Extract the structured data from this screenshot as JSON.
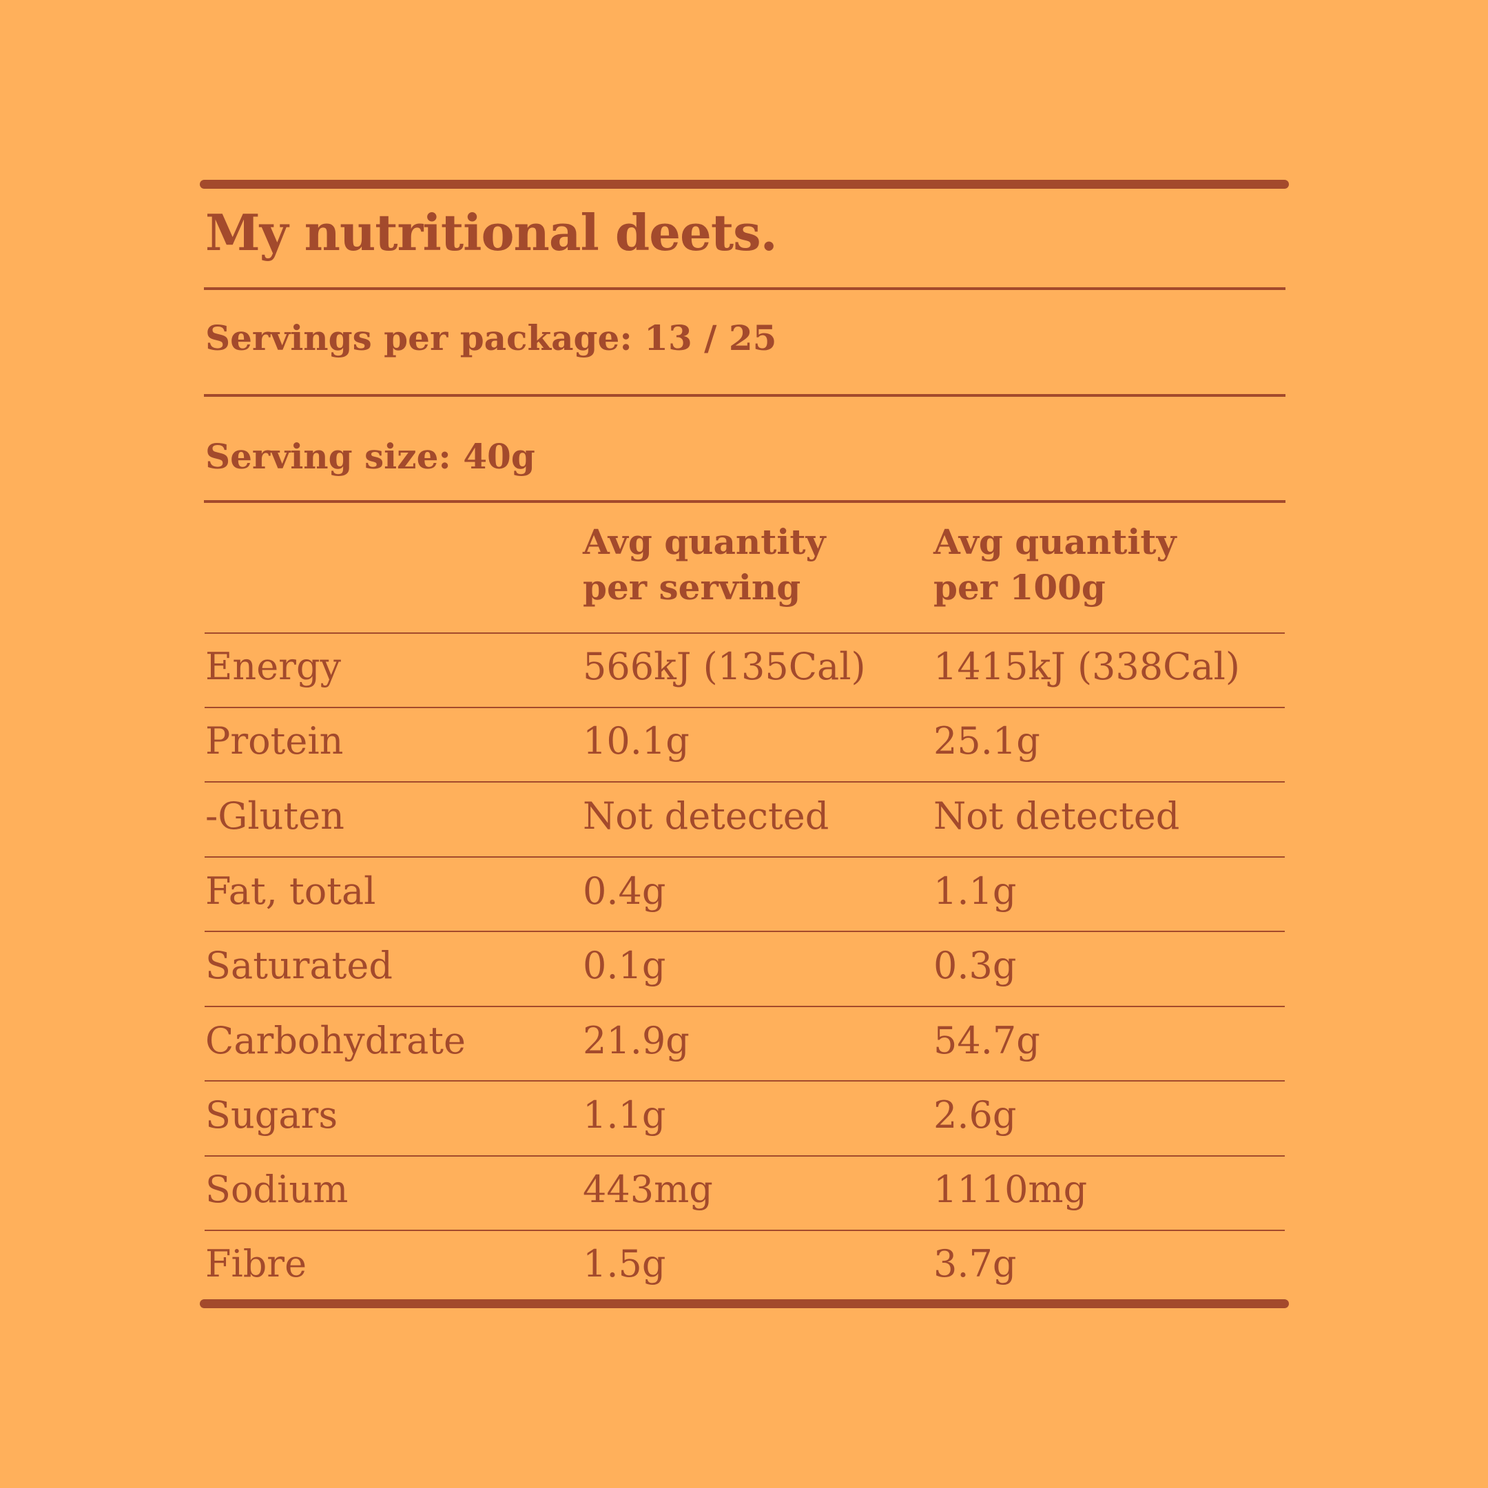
{
  "label": {
    "title": "My nutritional deets.",
    "servings_per_package": "Servings per package: 13 / 25",
    "serving_size": "Serving size: 40g",
    "columns": {
      "per_serving": "Avg quantity per serving",
      "per_100g": "Avg quantity per 100g"
    },
    "rows": [
      {
        "nutrient": "Energy",
        "per_serving": "566kJ (135Cal)",
        "per_100g": "1415kJ (338Cal)"
      },
      {
        "nutrient": "Protein",
        "per_serving": "10.1g",
        "per_100g": "25.1g"
      },
      {
        "nutrient": "-Gluten",
        "per_serving": "Not detected",
        "per_100g": "Not detected"
      },
      {
        "nutrient": "Fat, total",
        "per_serving": "0.4g",
        "per_100g": "1.1g"
      },
      {
        "nutrient": "Saturated",
        "per_serving": "0.1g",
        "per_100g": "0.3g"
      },
      {
        "nutrient": "Carbohydrate",
        "per_serving": "21.9g",
        "per_100g": "54.7g"
      },
      {
        "nutrient": "Sugars",
        "per_serving": "1.1g",
        "per_100g": "2.6g"
      },
      {
        "nutrient": "Sodium",
        "per_serving": "443mg",
        "per_100g": "1110mg"
      },
      {
        "nutrient": "Fibre",
        "per_serving": "1.5g",
        "per_100g": "3.7g"
      }
    ]
  },
  "colors": {
    "background": "#FFB05B",
    "ink": "#A34A2C"
  }
}
